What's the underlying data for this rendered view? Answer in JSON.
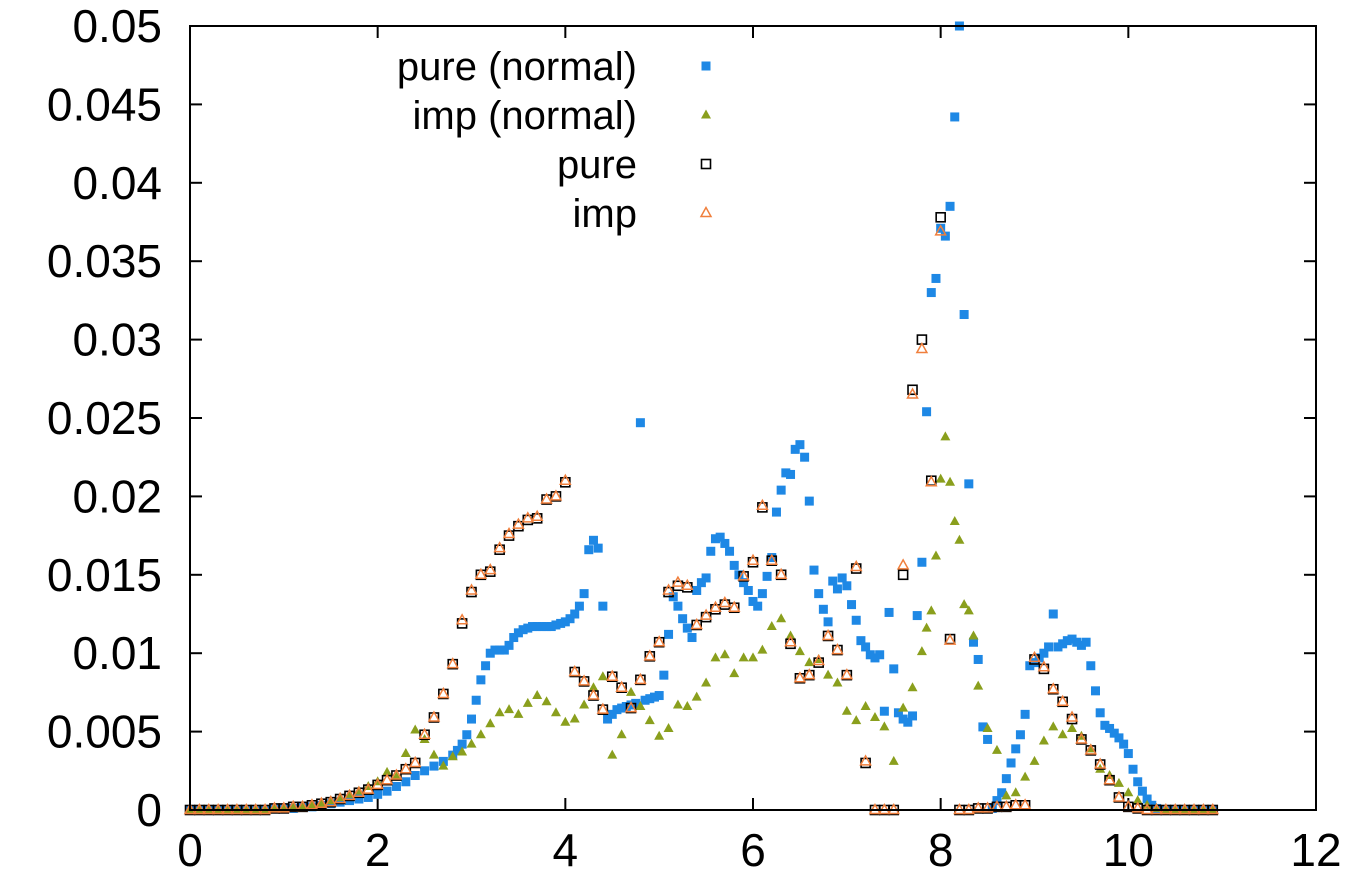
{
  "chart_data": {
    "type": "scatter",
    "title": "",
    "xlabel": "",
    "ylabel": "",
    "xlim": [
      0,
      12
    ],
    "ylim": [
      0,
      0.05
    ],
    "xticks": [
      "0",
      "2",
      "4",
      "6",
      "8",
      "10",
      "12"
    ],
    "yticks": [
      "0",
      "0.005",
      "0.01",
      "0.015",
      "0.02",
      "0.025",
      "0.03",
      "0.035",
      "0.04",
      "0.045",
      "0.05"
    ],
    "grid": false,
    "legend_position": "top-center",
    "series": [
      {
        "name": "pure (normal)",
        "marker": "filled-square",
        "color": "#1e88e5",
        "x": [
          0.0,
          0.1,
          0.2,
          0.3,
          0.4,
          0.5,
          0.6,
          0.7,
          0.8,
          0.9,
          1.0,
          1.1,
          1.2,
          1.3,
          1.4,
          1.5,
          1.6,
          1.7,
          1.8,
          1.9,
          2.0,
          2.1,
          2.2,
          2.3,
          2.4,
          2.5,
          2.6,
          2.7,
          2.8,
          2.85,
          2.9,
          2.95,
          3.0,
          3.05,
          3.1,
          3.15,
          3.2,
          3.25,
          3.3,
          3.35,
          3.4,
          3.45,
          3.5,
          3.55,
          3.6,
          3.65,
          3.7,
          3.75,
          3.8,
          3.85,
          3.9,
          3.95,
          4.0,
          4.05,
          4.1,
          4.15,
          4.2,
          4.25,
          4.3,
          4.35,
          4.4,
          4.45,
          4.5,
          4.55,
          4.6,
          4.65,
          4.7,
          4.75,
          4.8,
          4.85,
          4.9,
          4.95,
          5.0,
          5.05,
          5.1,
          5.15,
          5.2,
          5.25,
          5.3,
          5.35,
          5.4,
          5.45,
          5.5,
          5.55,
          5.6,
          5.65,
          5.7,
          5.75,
          5.8,
          5.85,
          5.9,
          5.95,
          6.0,
          6.05,
          6.1,
          6.15,
          6.2,
          6.25,
          6.3,
          6.35,
          6.4,
          6.45,
          6.5,
          6.55,
          6.6,
          6.65,
          6.7,
          6.75,
          6.8,
          6.85,
          6.9,
          6.95,
          7.0,
          7.05,
          7.1,
          7.15,
          7.2,
          7.25,
          7.3,
          7.35,
          7.4,
          7.45,
          7.5,
          7.55,
          7.6,
          7.65,
          7.7,
          7.75,
          7.8,
          7.85,
          7.9,
          7.95,
          8.0,
          8.05,
          8.1,
          8.15,
          8.2,
          8.25,
          8.3,
          8.35,
          8.4,
          8.45,
          8.5,
          8.55,
          8.6,
          8.65,
          8.7,
          8.75,
          8.8,
          8.85,
          8.9,
          8.95,
          9.0,
          9.05,
          9.1,
          9.15,
          9.2,
          9.25,
          9.3,
          9.35,
          9.4,
          9.45,
          9.5,
          9.55,
          9.6,
          9.65,
          9.7,
          9.75,
          9.8,
          9.85,
          9.9,
          9.95,
          10.0,
          10.05,
          10.1,
          10.15,
          10.2,
          10.25,
          10.3,
          10.4,
          10.5,
          10.6,
          10.7,
          10.8,
          10.9
        ],
        "y": [
          0,
          0,
          0,
          0,
          0,
          0,
          0,
          0,
          0,
          0.0001,
          0.0001,
          0.0001,
          0.0002,
          0.0002,
          0.0003,
          0.0004,
          0.0005,
          0.0006,
          0.0007,
          0.0008,
          0.001,
          0.0012,
          0.0015,
          0.0018,
          0.0022,
          0.0025,
          0.0028,
          0.0031,
          0.0035,
          0.0038,
          0.0042,
          0.0048,
          0.0058,
          0.007,
          0.0083,
          0.0092,
          0.01,
          0.0102,
          0.0102,
          0.0102,
          0.0105,
          0.011,
          0.0113,
          0.0115,
          0.0116,
          0.0117,
          0.0117,
          0.0117,
          0.0117,
          0.0117,
          0.0118,
          0.0119,
          0.012,
          0.0122,
          0.0125,
          0.013,
          0.0138,
          0.0166,
          0.0172,
          0.0167,
          0.013,
          0.0058,
          0.0061,
          0.0064,
          0.0065,
          0.0066,
          0.0067,
          0.0068,
          0.0247,
          0.007,
          0.0071,
          0.0072,
          0.0073,
          0.0086,
          0.0112,
          0.0136,
          0.013,
          0.0122,
          0.0116,
          0.011,
          0.014,
          0.0145,
          0.0148,
          0.0165,
          0.0173,
          0.0174,
          0.017,
          0.0165,
          0.0156,
          0.015,
          0.0145,
          0.014,
          0.0133,
          0.013,
          0.0138,
          0.0149,
          0.0161,
          0.019,
          0.0204,
          0.0215,
          0.0214,
          0.023,
          0.0233,
          0.0225,
          0.0197,
          0.0153,
          0.0138,
          0.0128,
          0.012,
          0.0146,
          0.0141,
          0.0148,
          0.0143,
          0.0131,
          0.0121,
          0.0108,
          0.0104,
          0.0099,
          0.0097,
          0.0099,
          0.0063,
          0.0126,
          0.009,
          0.0062,
          0.0058,
          0.0056,
          0.006,
          0.0124,
          0.0158,
          0.0254,
          0.033,
          0.0339,
          0.0371,
          0.0366,
          0.0385,
          0.0442,
          0.0501,
          0.0316,
          0.0208,
          0.0107,
          0.0096,
          0.0053,
          0.0045,
          0.0001,
          0.0006,
          0.0011,
          0.002,
          0.003,
          0.0039,
          0.0048,
          0.0061,
          0.0092,
          0.0094,
          0.0097,
          0.01,
          0.0104,
          0.0125,
          0.0104,
          0.0106,
          0.0108,
          0.0109,
          0.0107,
          0.0105,
          0.0107,
          0.0092,
          0.0076,
          0.0062,
          0.0054,
          0.0052,
          0.0049,
          0.0046,
          0.0042,
          0.0036,
          0.0026,
          0.0018,
          0.0012,
          0.0007,
          0.0003,
          0.0001,
          0,
          0,
          0,
          0,
          0,
          0
        ]
      },
      {
        "name": "imp (normal)",
        "marker": "filled-triangle",
        "color": "#8a9f1d",
        "x": [
          0.0,
          0.1,
          0.2,
          0.3,
          0.4,
          0.5,
          0.6,
          0.7,
          0.8,
          0.9,
          1.0,
          1.1,
          1.2,
          1.3,
          1.4,
          1.5,
          1.6,
          1.7,
          1.8,
          1.9,
          2.0,
          2.1,
          2.2,
          2.3,
          2.4,
          2.5,
          2.6,
          2.7,
          2.8,
          2.9,
          3.0,
          3.1,
          3.2,
          3.3,
          3.4,
          3.5,
          3.6,
          3.7,
          3.8,
          3.9,
          4.0,
          4.1,
          4.2,
          4.3,
          4.4,
          4.5,
          4.6,
          4.7,
          4.8,
          4.9,
          5.0,
          5.1,
          5.2,
          5.3,
          5.4,
          5.5,
          5.6,
          5.7,
          5.8,
          5.9,
          6.0,
          6.1,
          6.2,
          6.3,
          6.4,
          6.5,
          6.6,
          6.7,
          6.8,
          6.9,
          7.0,
          7.1,
          7.2,
          7.3,
          7.4,
          7.5,
          7.6,
          7.7,
          7.8,
          7.85,
          7.9,
          7.95,
          8.0,
          8.05,
          8.1,
          8.15,
          8.2,
          8.25,
          8.3,
          8.35,
          8.4,
          8.5,
          8.6,
          8.7,
          8.8,
          8.9,
          9.0,
          9.1,
          9.2,
          9.3,
          9.4,
          9.5,
          9.6,
          9.7,
          9.8,
          9.9,
          10.0,
          10.1,
          10.2,
          10.3,
          10.4,
          10.5,
          10.6,
          10.7,
          10.8,
          10.9
        ],
        "y": [
          0,
          0,
          0,
          0,
          0,
          0,
          0,
          0,
          0,
          0.0001,
          0.0001,
          0.0001,
          0.0002,
          0.0003,
          0.0004,
          0.0006,
          0.0008,
          0.001,
          0.0012,
          0.0015,
          0.0018,
          0.0024,
          0.0021,
          0.0036,
          0.0051,
          0.0045,
          0.0035,
          0.0028,
          0.0034,
          0.0037,
          0.0042,
          0.0048,
          0.0055,
          0.0062,
          0.0064,
          0.0061,
          0.0068,
          0.0073,
          0.0069,
          0.0062,
          0.0056,
          0.0058,
          0.0067,
          0.0078,
          0.0085,
          0.0035,
          0.0048,
          0.0075,
          0.0066,
          0.0057,
          0.0047,
          0.0052,
          0.0067,
          0.0066,
          0.0072,
          0.0081,
          0.0097,
          0.0099,
          0.0087,
          0.0097,
          0.0097,
          0.0102,
          0.0117,
          0.0122,
          0.0111,
          0.0101,
          0.0094,
          0.0096,
          0.0086,
          0.0081,
          0.0063,
          0.0057,
          0.0066,
          0.0059,
          0.0053,
          0.0031,
          0.0065,
          0.0078,
          0.0101,
          0.0116,
          0.0127,
          0.0162,
          0.0211,
          0.0238,
          0.0209,
          0.0184,
          0.0172,
          0.0131,
          0.0127,
          0.0111,
          0.0079,
          0.0052,
          0.0038,
          0.0009,
          0.0011,
          0.0021,
          0.0031,
          0.0044,
          0.0053,
          0.0048,
          0.0052,
          0.0047,
          0.0039,
          0.0026,
          0.0022,
          0.0017,
          0.0011,
          0.0006,
          0.0003,
          0.0001,
          0,
          0,
          0,
          0,
          0,
          0
        ]
      },
      {
        "name": "pure",
        "marker": "open-square",
        "color": "#000000",
        "x": [
          0.0,
          0.1,
          0.2,
          0.3,
          0.4,
          0.5,
          0.6,
          0.7,
          0.8,
          0.9,
          1.0,
          1.1,
          1.2,
          1.3,
          1.4,
          1.5,
          1.6,
          1.7,
          1.8,
          1.9,
          2.0,
          2.1,
          2.2,
          2.3,
          2.4,
          2.5,
          2.6,
          2.7,
          2.8,
          2.9,
          3.0,
          3.1,
          3.2,
          3.3,
          3.4,
          3.5,
          3.6,
          3.7,
          3.8,
          3.9,
          4.0,
          4.1,
          4.2,
          4.3,
          4.4,
          4.5,
          4.6,
          4.7,
          4.8,
          4.9,
          5.0,
          5.1,
          5.2,
          5.3,
          5.4,
          5.5,
          5.6,
          5.7,
          5.8,
          5.9,
          6.0,
          6.1,
          6.2,
          6.3,
          6.4,
          6.5,
          6.6,
          6.7,
          6.8,
          6.9,
          7.0,
          7.1,
          7.2,
          7.3,
          7.4,
          7.5,
          7.6,
          7.7,
          7.8,
          7.9,
          8.0,
          8.1,
          8.2,
          8.3,
          8.4,
          8.5,
          8.6,
          8.7,
          8.8,
          8.9,
          9.0,
          9.1,
          9.2,
          9.3,
          9.4,
          9.5,
          9.6,
          9.7,
          9.8,
          9.9,
          10.0,
          10.1,
          10.2,
          10.3,
          10.4,
          10.5,
          10.6,
          10.7,
          10.8,
          10.9
        ],
        "y": [
          0,
          0,
          0,
          0,
          0,
          0,
          0,
          0,
          0,
          0.0001,
          0.0001,
          0.0002,
          0.0002,
          0.0003,
          0.0004,
          0.0005,
          0.0007,
          0.0009,
          0.0011,
          0.0013,
          0.0016,
          0.0019,
          0.0022,
          0.0026,
          0.003,
          0.0048,
          0.0059,
          0.0074,
          0.0093,
          0.0119,
          0.0139,
          0.015,
          0.0152,
          0.0166,
          0.0175,
          0.0181,
          0.0185,
          0.0186,
          0.0198,
          0.02,
          0.0209,
          0.0088,
          0.0082,
          0.0073,
          0.0064,
          0.0085,
          0.0078,
          0.0065,
          0.0083,
          0.0098,
          0.0107,
          0.0139,
          0.0143,
          0.0142,
          0.0118,
          0.0123,
          0.0128,
          0.0131,
          0.0129,
          0.0149,
          0.0158,
          0.0193,
          0.0159,
          0.015,
          0.0106,
          0.0084,
          0.0086,
          0.0094,
          0.0111,
          0.0102,
          0.0086,
          0.0154,
          0.003,
          0,
          0,
          0,
          0.015,
          0.0268,
          0.03,
          0.021,
          0.0378,
          0.0109,
          0,
          0,
          0.0001,
          0.0001,
          0.0002,
          0.0002,
          0.0003,
          0.0003,
          0.0096,
          0.009,
          0.0077,
          0.0069,
          0.0058,
          0.0045,
          0.0038,
          0.0029,
          0.0019,
          0.0008,
          0.0002,
          0.0001,
          0,
          0,
          0,
          0,
          0,
          0,
          0,
          0
        ]
      },
      {
        "name": "imp",
        "marker": "open-triangle",
        "color": "#f07f3c",
        "x": [
          0.0,
          0.1,
          0.2,
          0.3,
          0.4,
          0.5,
          0.6,
          0.7,
          0.8,
          0.9,
          1.0,
          1.1,
          1.2,
          1.3,
          1.4,
          1.5,
          1.6,
          1.7,
          1.8,
          1.9,
          2.0,
          2.1,
          2.2,
          2.3,
          2.4,
          2.5,
          2.6,
          2.7,
          2.8,
          2.9,
          3.0,
          3.1,
          3.2,
          3.3,
          3.4,
          3.5,
          3.6,
          3.7,
          3.8,
          3.9,
          4.0,
          4.1,
          4.2,
          4.3,
          4.4,
          4.5,
          4.6,
          4.7,
          4.8,
          4.9,
          5.0,
          5.1,
          5.2,
          5.3,
          5.4,
          5.5,
          5.6,
          5.7,
          5.8,
          5.9,
          6.0,
          6.1,
          6.2,
          6.3,
          6.4,
          6.5,
          6.6,
          6.7,
          6.8,
          6.9,
          7.0,
          7.1,
          7.2,
          7.3,
          7.4,
          7.5,
          7.6,
          7.7,
          7.8,
          7.9,
          8.0,
          8.1,
          8.2,
          8.3,
          8.4,
          8.5,
          8.6,
          8.7,
          8.8,
          8.9,
          9.0,
          9.1,
          9.2,
          9.3,
          9.4,
          9.5,
          9.6,
          9.7,
          9.8,
          9.9,
          10.0,
          10.1,
          10.2,
          10.3,
          10.4,
          10.5,
          10.6,
          10.7,
          10.8,
          10.9
        ],
        "y": [
          0,
          0,
          0,
          0,
          0,
          0,
          0,
          0,
          0,
          0.0001,
          0.0001,
          0.0002,
          0.0002,
          0.0003,
          0.0004,
          0.0005,
          0.0007,
          0.0009,
          0.0011,
          0.0013,
          0.0016,
          0.0019,
          0.0022,
          0.0026,
          0.003,
          0.0048,
          0.0059,
          0.0074,
          0.0093,
          0.0121,
          0.014,
          0.015,
          0.0153,
          0.0167,
          0.0176,
          0.0182,
          0.0186,
          0.0187,
          0.0198,
          0.02,
          0.021,
          0.0088,
          0.0082,
          0.0073,
          0.0064,
          0.0085,
          0.0078,
          0.0065,
          0.0083,
          0.0098,
          0.0107,
          0.014,
          0.0145,
          0.0143,
          0.0118,
          0.0124,
          0.0129,
          0.0132,
          0.0129,
          0.0149,
          0.0159,
          0.0194,
          0.0159,
          0.015,
          0.0107,
          0.0084,
          0.0086,
          0.0095,
          0.0111,
          0.0102,
          0.0086,
          0.0155,
          0.0031,
          0,
          0,
          0,
          0.0156,
          0.0265,
          0.0294,
          0.0209,
          0.0369,
          0.0108,
          0,
          0,
          0.0001,
          0.0001,
          0.0002,
          0.0002,
          0.0003,
          0.0003,
          0.0097,
          0.0091,
          0.0077,
          0.0069,
          0.0059,
          0.0045,
          0.0038,
          0.0029,
          0.0019,
          0.0008,
          0.0002,
          0.0001,
          0,
          0,
          0,
          0,
          0,
          0,
          0,
          0
        ]
      }
    ]
  }
}
